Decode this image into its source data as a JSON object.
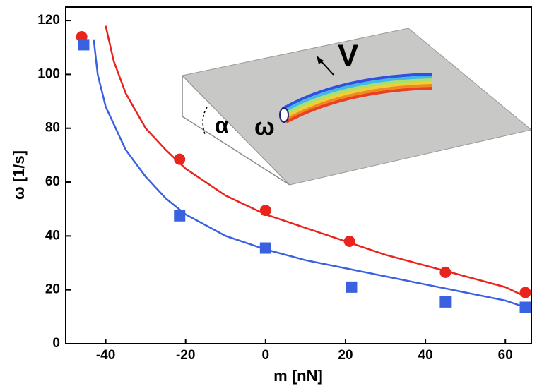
{
  "chart_data": {
    "type": "scatter",
    "x_label": "m [nN]",
    "y_label": "ω [1/s]",
    "xlim": [
      -50,
      66.5
    ],
    "ylim": [
      0,
      125
    ],
    "xticks": [
      -40,
      -20,
      0,
      20,
      40,
      60
    ],
    "yticks": [
      0,
      20,
      40,
      60,
      80,
      100,
      120
    ],
    "series": [
      {
        "color": "#e8241c",
        "marker": "circle",
        "x": [
          -46,
          -21.5,
          0,
          21,
          45,
          65
        ],
        "values": [
          114,
          68.5,
          49.5,
          38,
          26.5,
          19
        ]
      },
      {
        "color": "#3a62e0",
        "marker": "square",
        "x": [
          -45.5,
          -21.5,
          0,
          21.5,
          45,
          65
        ],
        "values": [
          111,
          47.5,
          35.5,
          21,
          15.5,
          13.5
        ]
      }
    ],
    "curves": [
      {
        "color": "#e8241c",
        "x": [
          -40,
          -38,
          -35,
          -30,
          -25,
          -20,
          -10,
          0,
          10,
          20,
          30,
          40,
          50,
          60,
          65
        ],
        "values": [
          118,
          105,
          93,
          80,
          72,
          65,
          55,
          48,
          43,
          38,
          33,
          29,
          25,
          21,
          17.5
        ]
      },
      {
        "color": "#3a62e0",
        "x": [
          -43,
          -42,
          -40,
          -35,
          -30,
          -25,
          -20,
          -10,
          0,
          10,
          20,
          30,
          40,
          50,
          60,
          65
        ],
        "values": [
          113,
          100,
          88,
          72,
          62,
          54,
          48,
          40,
          35,
          31,
          28,
          25,
          22,
          19,
          16,
          13.5
        ]
      }
    ],
    "inset": {
      "labels": [
        "V",
        "α",
        "ω"
      ]
    }
  }
}
